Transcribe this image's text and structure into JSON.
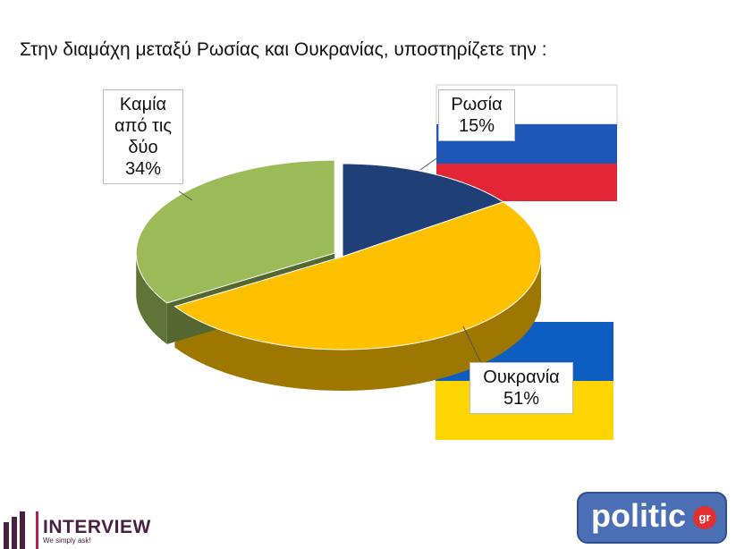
{
  "chart_data": {
    "type": "pie",
    "title": "Στην διαμάχη μεταξύ Ρωσίας και Ουκρανίας, υποστηρίζετε την :",
    "categories": [
      "Ρωσία",
      "Ουκρανία",
      "Καμία από τις δύο"
    ],
    "values": [
      15,
      51,
      34
    ],
    "value_labels": [
      "15%",
      "51%",
      "34%"
    ],
    "colors": [
      "#1f3f76",
      "#ffc000",
      "#9bbb59"
    ],
    "three_d": true
  },
  "logos": {
    "left_name": "INTERVIEW",
    "left_slogan": "We simply ask!",
    "right_name": "politic",
    "right_badge": "gr"
  }
}
